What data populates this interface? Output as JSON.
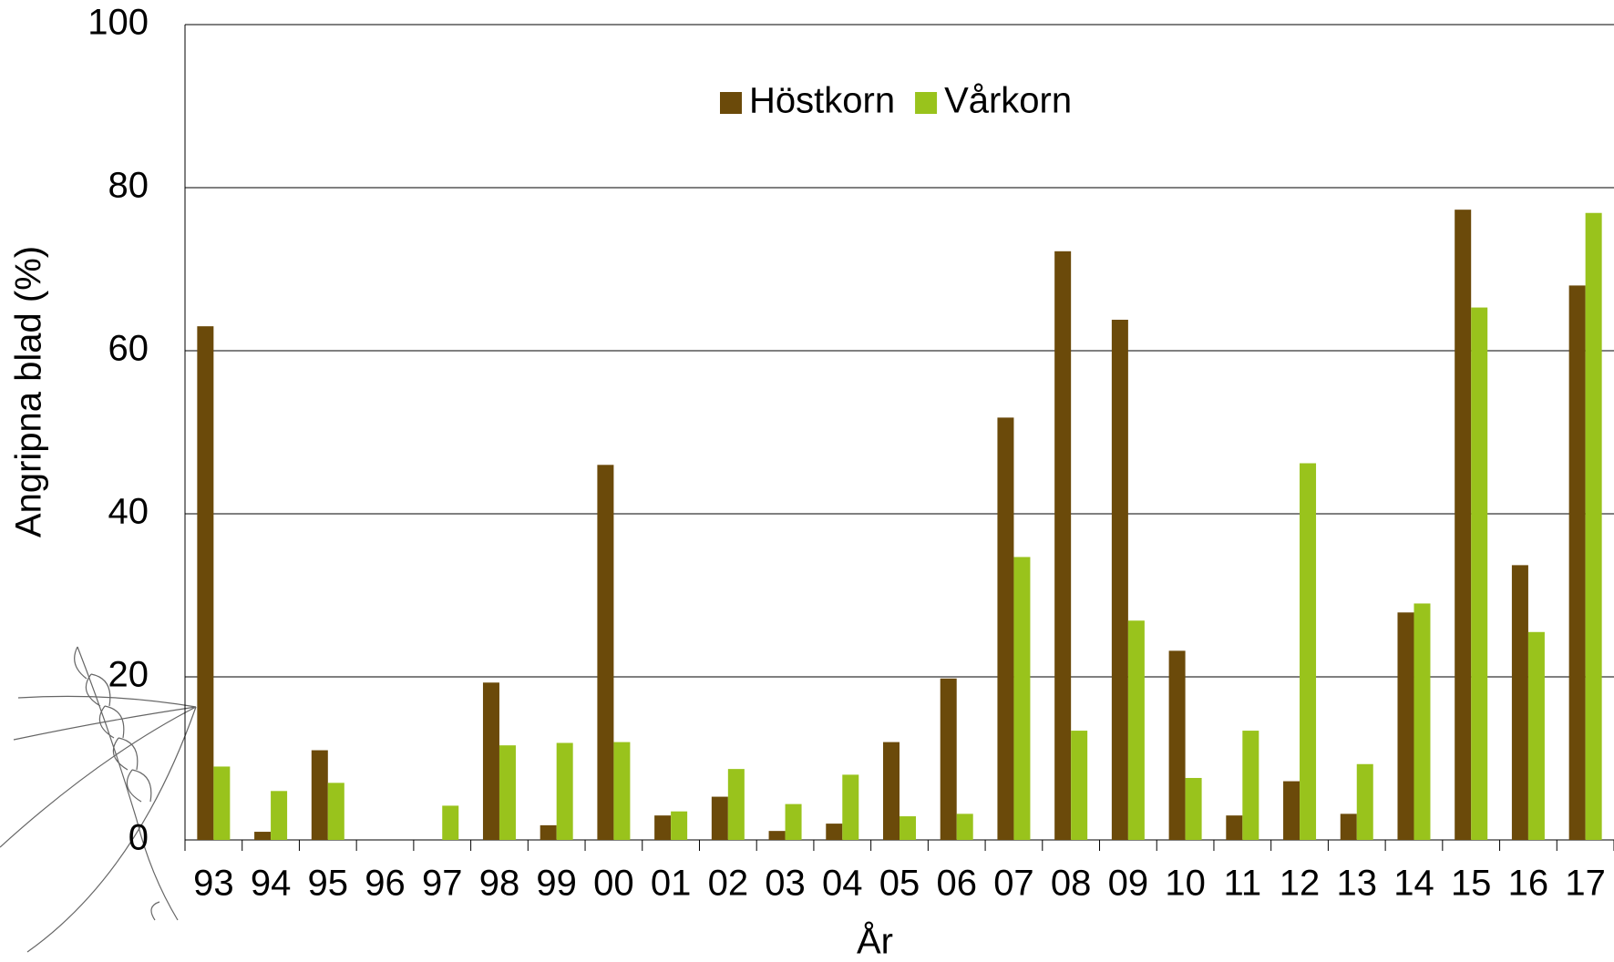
{
  "chart_data": {
    "type": "bar",
    "x_label": "År",
    "y_label": "Angripna blad (%)",
    "categories": [
      "93",
      "94",
      "95",
      "96",
      "97",
      "98",
      "99",
      "00",
      "01",
      "02",
      "03",
      "04",
      "05",
      "06",
      "07",
      "08",
      "09",
      "10",
      "11",
      "12",
      "13",
      "14",
      "15",
      "16",
      "17"
    ],
    "series": [
      {
        "name": "Höstkorn",
        "color": "#6b4a0a",
        "values": [
          63,
          1,
          11,
          0,
          0,
          19.3,
          1.8,
          46,
          3,
          5.3,
          1.1,
          2,
          12,
          19.8,
          51.8,
          72.2,
          63.8,
          23.2,
          3,
          7.2,
          3.2,
          27.9,
          77.3,
          33.7,
          68
        ]
      },
      {
        "name": "Vårkorn",
        "color": "#99c31c",
        "values": [
          9,
          6,
          7,
          0,
          4.2,
          11.6,
          11.9,
          12,
          3.5,
          8.7,
          4.4,
          8,
          2.9,
          3.2,
          34.7,
          13.4,
          26.9,
          7.6,
          13.4,
          46.2,
          9.3,
          29,
          65.3,
          25.5,
          76.9
        ]
      }
    ],
    "ylim": [
      0,
      100
    ],
    "yticks": [
      0,
      20,
      40,
      60,
      80,
      100
    ],
    "grid": true,
    "legend": "top"
  }
}
